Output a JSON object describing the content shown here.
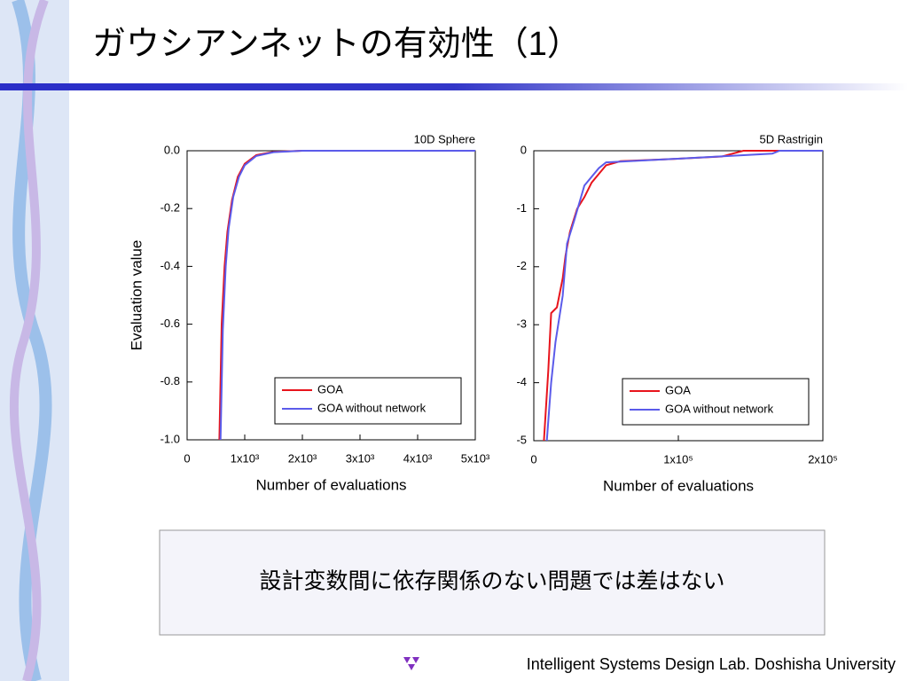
{
  "slide": {
    "title": "ガウシアンネットの有効性（1）",
    "caption": "設計変数間に依存関係のない問題では差はない",
    "footer": "Intelligent Systems Design Lab. Doshisha University"
  },
  "chart_data": [
    {
      "type": "line",
      "title": "10D Sphere",
      "x_label": "Number of evaluations",
      "y_label": "Evaluation value",
      "xlim": [
        0,
        5000
      ],
      "xticks": [
        0,
        {
          "value": 1000,
          "label": "1x10³"
        },
        {
          "value": 2000,
          "label": "2x10³"
        },
        {
          "value": 3000,
          "label": "3x10³"
        },
        {
          "value": 4000,
          "label": "4x10³"
        },
        {
          "value": 5000,
          "label": "5x10³"
        }
      ],
      "ylim": [
        -1,
        0
      ],
      "yticks": [
        {
          "value": -1,
          "label": "-1.0"
        },
        -0.8,
        -0.6,
        -0.4,
        -0.2,
        {
          "value": 0,
          "label": "0.0"
        }
      ],
      "legend": "lower right",
      "series": [
        {
          "name": "GOA",
          "color": "#e8141c",
          "x": [
            560,
            600,
            650,
            700,
            780,
            880,
            1000,
            1200,
            1500,
            2000,
            5000
          ],
          "values": [
            -1,
            -0.6,
            -0.4,
            -0.28,
            -0.17,
            -0.09,
            -0.045,
            -0.015,
            -0.004,
            0,
            0
          ]
        },
        {
          "name": "GOA without network",
          "color": "#5b5bea",
          "x": [
            580,
            620,
            670,
            720,
            800,
            900,
            1000,
            1200,
            1500,
            2000,
            5000
          ],
          "values": [
            -1,
            -0.62,
            -0.4,
            -0.27,
            -0.16,
            -0.09,
            -0.05,
            -0.018,
            -0.005,
            0,
            0
          ]
        }
      ]
    },
    {
      "type": "line",
      "title": "5D Rastrigin",
      "x_label": "Number of evaluations",
      "xlim": [
        0,
        200000
      ],
      "xticks": [
        0,
        {
          "value": 100000,
          "label": "1x10⁵"
        },
        {
          "value": 200000,
          "label": "2x10⁵"
        }
      ],
      "ylim": [
        -5,
        0
      ],
      "yticks": [
        -5,
        -4,
        -3,
        -2,
        -1,
        0
      ],
      "legend": "lower right",
      "series": [
        {
          "name": "GOA",
          "color": "#e8141c",
          "x": [
            7000,
            10000,
            12000,
            16000,
            20000,
            22000,
            25000,
            30000,
            35000,
            40000,
            45000,
            50000,
            60000,
            90000,
            130000,
            145000,
            200000
          ],
          "values": [
            -5,
            -3.8,
            -2.8,
            -2.7,
            -2.2,
            -1.8,
            -1.4,
            -1.0,
            -0.8,
            -0.55,
            -0.4,
            -0.25,
            -0.18,
            -0.15,
            -0.1,
            0,
            0
          ]
        },
        {
          "name": "GOA without network",
          "color": "#5b5bea",
          "x": [
            9000,
            12000,
            15000,
            20000,
            23000,
            28000,
            35000,
            45000,
            50000,
            90000,
            165000,
            170000,
            200000
          ],
          "values": [
            -5,
            -4,
            -3.3,
            -2.5,
            -1.6,
            -1.2,
            -0.6,
            -0.3,
            -0.2,
            -0.15,
            -0.05,
            0,
            0
          ]
        }
      ]
    }
  ]
}
